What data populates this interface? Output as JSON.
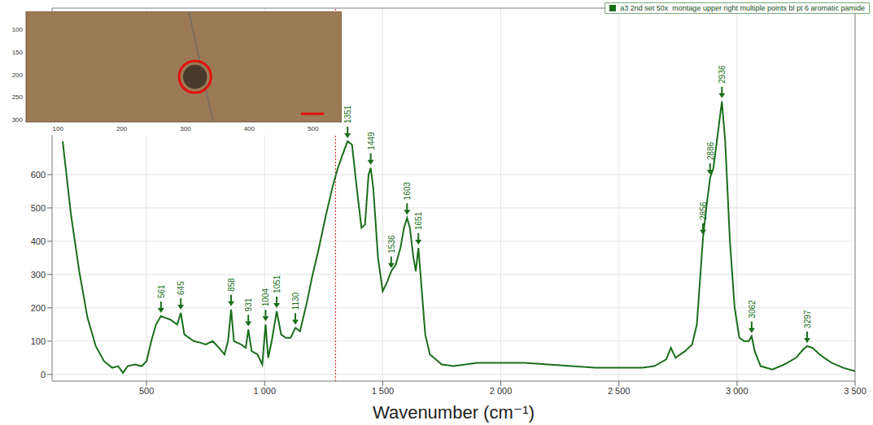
{
  "chart_data": {
    "type": "line",
    "x_label": "Wavenumber (cm⁻¹)",
    "legend": "upper right",
    "grid": true,
    "xlim": [
      100,
      3500
    ],
    "xticks": [
      500,
      {
        "value": 1000,
        "label": "1 000"
      },
      {
        "value": 1500,
        "label": "1 500"
      },
      {
        "value": 2000,
        "label": "2 000"
      },
      {
        "value": 2500,
        "label": "2 500"
      },
      {
        "value": 3000,
        "label": "3 000"
      },
      {
        "value": 3500,
        "label": "3 500"
      }
    ],
    "ylim": [
      -20,
      1100
    ],
    "yticks": [
      0,
      100,
      200,
      300,
      400,
      500,
      600
    ],
    "cursor": 1300,
    "x": [
      145,
      180,
      215,
      250,
      285,
      320,
      355,
      380,
      400,
      420,
      450,
      480,
      500,
      520,
      540,
      561,
      580,
      600,
      630,
      645,
      660,
      700,
      730,
      750,
      780,
      800,
      830,
      845,
      858,
      870,
      900,
      920,
      931,
      945,
      970,
      990,
      1004,
      1015,
      1030,
      1051,
      1070,
      1090,
      1110,
      1130,
      1150,
      1180,
      1200,
      1230,
      1260,
      1290,
      1310,
      1330,
      1351,
      1370,
      1390,
      1410,
      1425,
      1440,
      1449,
      1460,
      1480,
      1500,
      1520,
      1536,
      1555,
      1575,
      1590,
      1603,
      1615,
      1630,
      1640,
      1651,
      1660,
      1680,
      1700,
      1750,
      1800,
      1900,
      2000,
      2100,
      2200,
      2300,
      2400,
      2500,
      2600,
      2650,
      2700,
      2720,
      2740,
      2780,
      2810,
      2830,
      2845,
      2856,
      2870,
      2886,
      2900,
      2920,
      2936,
      2950,
      2970,
      2990,
      3010,
      3030,
      3050,
      3062,
      3075,
      3100,
      3150,
      3200,
      3250,
      3280,
      3297,
      3320,
      3350,
      3400,
      3450,
      3500
    ],
    "series": [
      {
        "name": "a3 2nd set 50x  montage upper right multiple points bl pt 6 aromatic pamide",
        "color": "#1a6e1a",
        "values": [
          700,
          480,
          310,
          170,
          85,
          40,
          20,
          25,
          5,
          25,
          30,
          25,
          40,
          100,
          150,
          175,
          170,
          165,
          150,
          185,
          120,
          100,
          95,
          90,
          100,
          85,
          60,
          100,
          195,
          100,
          90,
          80,
          135,
          70,
          60,
          30,
          150,
          50,
          100,
          190,
          120,
          110,
          110,
          140,
          130,
          220,
          290,
          380,
          480,
          570,
          620,
          660,
          700,
          690,
          560,
          440,
          450,
          600,
          620,
          560,
          350,
          250,
          280,
          310,
          330,
          380,
          440,
          470,
          440,
          350,
          310,
          380,
          300,
          120,
          60,
          30,
          25,
          35,
          35,
          35,
          30,
          25,
          20,
          20,
          20,
          25,
          45,
          80,
          50,
          70,
          90,
          150,
          300,
          410,
          500,
          590,
          620,
          730,
          820,
          700,
          400,
          200,
          110,
          100,
          100,
          115,
          70,
          25,
          15,
          30,
          50,
          75,
          85,
          80,
          60,
          35,
          20,
          10
        ]
      }
    ],
    "annotations": [
      {
        "x": 561,
        "y": 180
      },
      {
        "x": 645,
        "y": 190
      },
      {
        "x": 858,
        "y": 200
      },
      {
        "x": 931,
        "y": 140
      },
      {
        "x": 1004,
        "y": 155
      },
      {
        "x": 1051,
        "y": 195
      },
      {
        "x": 1130,
        "y": 145
      },
      {
        "x": 1351,
        "y": 705
      },
      {
        "x": 1449,
        "y": 625
      },
      {
        "x": 1536,
        "y": 315
      },
      {
        "x": 1603,
        "y": 475
      },
      {
        "x": 1651,
        "y": 385
      },
      {
        "x": 2856,
        "y": 415
      },
      {
        "x": 2886,
        "y": 595
      },
      {
        "x": 2936,
        "y": 825
      },
      {
        "x": 3062,
        "y": 120
      },
      {
        "x": 3297,
        "y": 90
      }
    ],
    "inset": {
      "xlim": [
        50,
        545
      ],
      "ylim": [
        60,
        305
      ],
      "xticks": [
        100,
        200,
        300,
        400,
        500
      ],
      "yticks": [
        100,
        150,
        200,
        250,
        300
      ],
      "circle": {
        "x": 315,
        "y": 205,
        "r": 25
      }
    }
  }
}
